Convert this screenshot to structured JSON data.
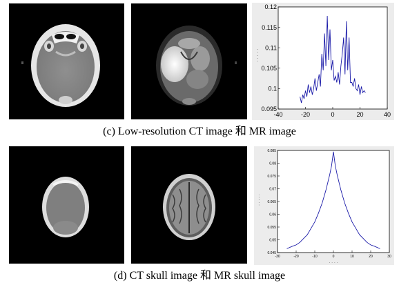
{
  "figures": [
    {
      "caption": "(c) Low-resolution CT image 和 MR image",
      "images": [
        {
          "kind": "CT slice",
          "name": "ct-image"
        },
        {
          "kind": "MR slice",
          "name": "mr-image"
        }
      ]
    },
    {
      "caption": "(d) CT skull image 和 MR skull image",
      "images": [
        {
          "kind": "CT slice",
          "name": "ct-skull-image"
        },
        {
          "kind": "MR slice",
          "name": "mr-skull-image"
        }
      ]
    }
  ],
  "chart_data": [
    {
      "type": "line",
      "title": "",
      "xlabel": "",
      "ylabel": "",
      "xlim": [
        -40,
        40
      ],
      "ylim": [
        0.095,
        0.12
      ],
      "xticks": [
        "-40",
        "-20",
        "0",
        "20",
        "40"
      ],
      "yticks": [
        "0.095",
        "0.1",
        "0.105",
        "0.11",
        "0.115",
        "0.12"
      ],
      "line_color": "#1a1aa8",
      "grid": false,
      "x": [
        -24,
        -23,
        -22,
        -21,
        -20,
        -19,
        -18,
        -17,
        -16,
        -15,
        -14,
        -13,
        -12,
        -11,
        -10,
        -9,
        -8,
        -7,
        -6,
        -5,
        -4,
        -3,
        -2,
        -1,
        0,
        1,
        2,
        3,
        4,
        5,
        6,
        7,
        8,
        9,
        10,
        11,
        12,
        13,
        14,
        15,
        16,
        17,
        18,
        19,
        20,
        21,
        22,
        23,
        24
      ],
      "y": [
        0.098,
        0.0965,
        0.0985,
        0.0975,
        0.0995,
        0.098,
        0.101,
        0.099,
        0.1005,
        0.0985,
        0.1,
        0.1025,
        0.0995,
        0.1015,
        0.1035,
        0.1005,
        0.1085,
        0.1045,
        0.1135,
        0.1055,
        0.1178,
        0.107,
        0.1145,
        0.1045,
        0.107,
        0.102,
        0.103,
        0.1015,
        0.104,
        0.101,
        0.1055,
        0.1085,
        0.1125,
        0.1035,
        0.1165,
        0.1045,
        0.1125,
        0.1015,
        0.1015,
        0.1005,
        0.1025,
        0.1,
        0.0995,
        0.101,
        0.0985,
        0.1005,
        0.099,
        0.0995,
        0.099
      ]
    },
    {
      "type": "line",
      "title": "",
      "xlabel": "",
      "ylabel": "",
      "xlim": [
        -30,
        30
      ],
      "ylim": [
        0.045,
        0.085
      ],
      "xticks": [
        "-30",
        "-20",
        "-10",
        "0",
        "10",
        "20",
        "30"
      ],
      "yticks": [
        "0.045",
        "0.05",
        "0.055",
        "0.06",
        "0.065",
        "0.07",
        "0.075",
        "0.08",
        "0.085"
      ],
      "line_color": "#1a1aa8",
      "grid": false,
      "x": [
        -25,
        -22,
        -20,
        -18,
        -16,
        -14,
        -12,
        -10,
        -8,
        -6,
        -4,
        -2,
        -1,
        0,
        1,
        2,
        4,
        6,
        8,
        10,
        12,
        14,
        16,
        18,
        20,
        22,
        25
      ],
      "y": [
        0.0465,
        0.0475,
        0.048,
        0.049,
        0.0505,
        0.052,
        0.0545,
        0.057,
        0.0605,
        0.0645,
        0.0695,
        0.0755,
        0.079,
        0.0845,
        0.079,
        0.0755,
        0.0695,
        0.0645,
        0.0605,
        0.057,
        0.0545,
        0.052,
        0.0505,
        0.049,
        0.048,
        0.0475,
        0.0465
      ]
    }
  ]
}
